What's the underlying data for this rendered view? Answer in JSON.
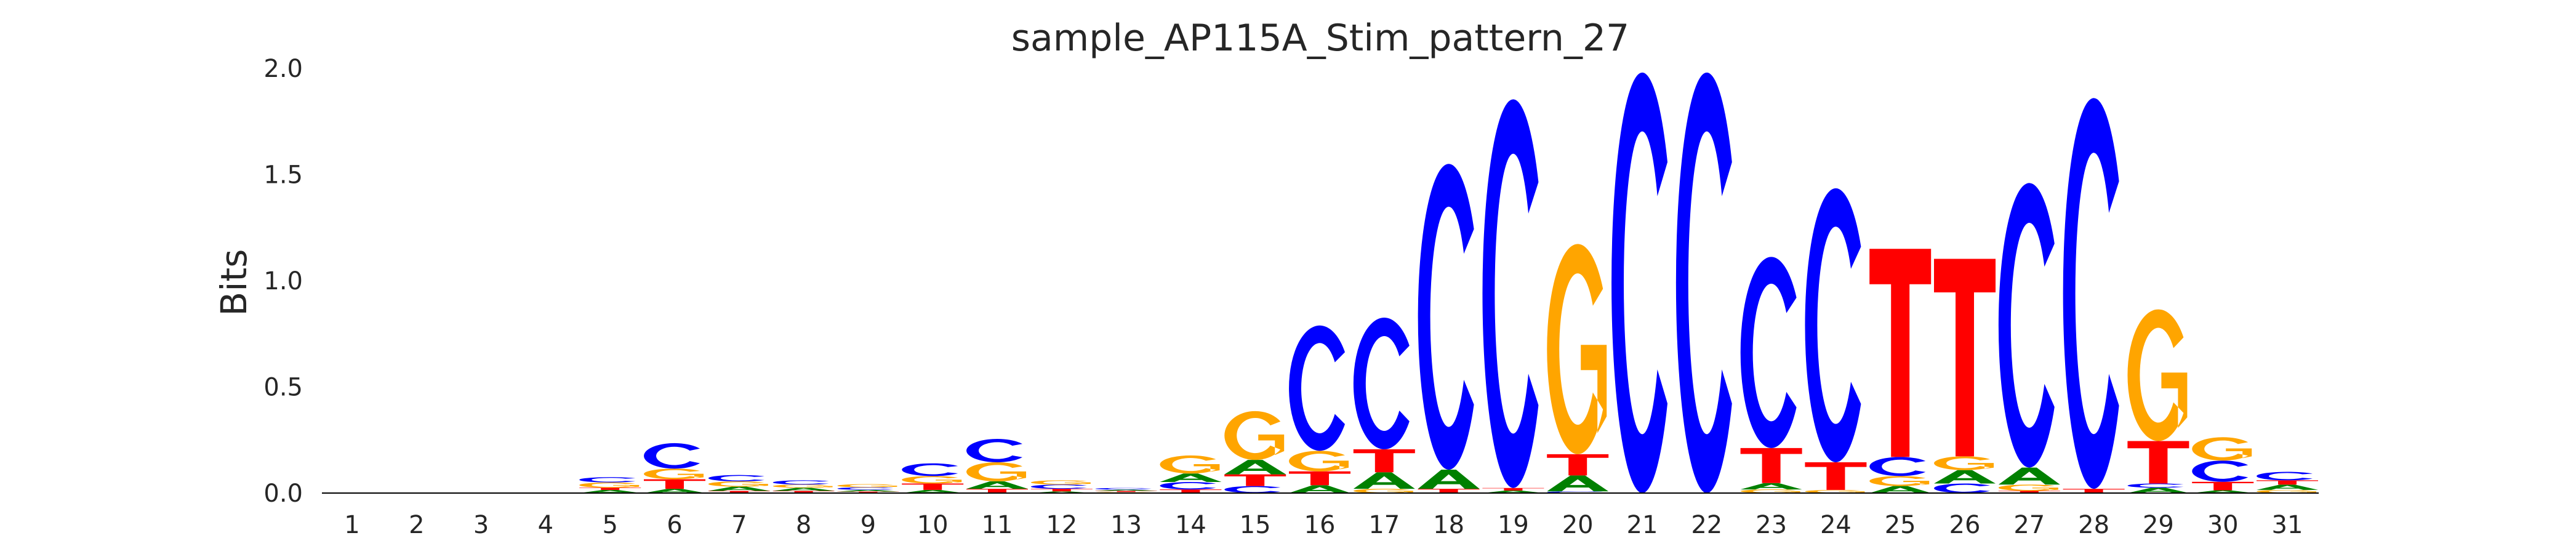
{
  "chart_data": {
    "type": "sequence-logo",
    "title": "sample_AP115A_Stim_pattern_27",
    "xlabel": "",
    "ylabel": "Bits",
    "ylim": [
      0,
      2.0
    ],
    "yticks": [
      "0.0",
      "0.5",
      "1.0",
      "1.5",
      "2.0"
    ],
    "ytick_values": [
      0,
      0.5,
      1.0,
      1.5,
      2.0
    ],
    "colors": {
      "A": "#008000",
      "C": "#0000ff",
      "G": "#ffa500",
      "T": "#ff0000"
    },
    "positions": [
      {
        "pos": "1",
        "stack": []
      },
      {
        "pos": "2",
        "stack": []
      },
      {
        "pos": "3",
        "stack": []
      },
      {
        "pos": "4",
        "stack": []
      },
      {
        "pos": "5",
        "stack": [
          [
            "A",
            0.015
          ],
          [
            "T",
            0.01
          ],
          [
            "G",
            0.025
          ],
          [
            "C",
            0.025
          ]
        ]
      },
      {
        "pos": "6",
        "stack": [
          [
            "A",
            0.02
          ],
          [
            "T",
            0.045
          ],
          [
            "G",
            0.05
          ],
          [
            "C",
            0.12
          ]
        ]
      },
      {
        "pos": "7",
        "stack": [
          [
            "T",
            0.01
          ],
          [
            "A",
            0.02
          ],
          [
            "G",
            0.025
          ],
          [
            "C",
            0.03
          ]
        ]
      },
      {
        "pos": "8",
        "stack": [
          [
            "T",
            0.01
          ],
          [
            "A",
            0.015
          ],
          [
            "G",
            0.015
          ],
          [
            "C",
            0.02
          ]
        ]
      },
      {
        "pos": "9",
        "stack": [
          [
            "T",
            0.007
          ],
          [
            "A",
            0.008
          ],
          [
            "C",
            0.012
          ],
          [
            "G",
            0.015
          ]
        ]
      },
      {
        "pos": "10",
        "stack": [
          [
            "A",
            0.015
          ],
          [
            "T",
            0.03
          ],
          [
            "G",
            0.035
          ],
          [
            "C",
            0.06
          ]
        ]
      },
      {
        "pos": "11",
        "stack": [
          [
            "T",
            0.02
          ],
          [
            "A",
            0.035
          ],
          [
            "G",
            0.09
          ],
          [
            "C",
            0.11
          ]
        ]
      },
      {
        "pos": "12",
        "stack": [
          [
            "A",
            0.008
          ],
          [
            "T",
            0.012
          ],
          [
            "C",
            0.02
          ],
          [
            "G",
            0.02
          ]
        ]
      },
      {
        "pos": "13",
        "stack": [
          [
            "G",
            0.005
          ],
          [
            "T",
            0.005
          ],
          [
            "A",
            0.006
          ],
          [
            "C",
            0.008
          ]
        ]
      },
      {
        "pos": "14",
        "stack": [
          [
            "T",
            0.017
          ],
          [
            "C",
            0.035
          ],
          [
            "A",
            0.04
          ],
          [
            "G",
            0.085
          ]
        ]
      },
      {
        "pos": "15",
        "stack": [
          [
            "C",
            0.033
          ],
          [
            "T",
            0.055
          ],
          [
            "A",
            0.068
          ],
          [
            "G",
            0.23
          ]
        ]
      },
      {
        "pos": "16",
        "stack": [
          [
            "A",
            0.037
          ],
          [
            "T",
            0.065
          ],
          [
            "G",
            0.097
          ],
          [
            "C",
            0.59
          ]
        ]
      },
      {
        "pos": "17",
        "stack": [
          [
            "G",
            0.02
          ],
          [
            "A",
            0.078
          ],
          [
            "T",
            0.108
          ],
          [
            "C",
            0.62
          ]
        ]
      },
      {
        "pos": "18",
        "stack": [
          [
            "T",
            0.02
          ],
          [
            "A",
            0.09
          ],
          [
            "C",
            1.44
          ]
        ]
      },
      {
        "pos": "19",
        "stack": [
          [
            "A",
            0.012
          ],
          [
            "T",
            0.012
          ],
          [
            "C",
            1.83
          ]
        ]
      },
      {
        "pos": "20",
        "stack": [
          [
            "C",
            0.008
          ],
          [
            "A",
            0.075
          ],
          [
            "T",
            0.1
          ],
          [
            "G",
            0.99
          ]
        ]
      },
      {
        "pos": "21",
        "stack": [
          [
            "C",
            1.98
          ]
        ]
      },
      {
        "pos": "22",
        "stack": [
          [
            "C",
            1.98
          ]
        ]
      },
      {
        "pos": "23",
        "stack": [
          [
            "G",
            0.017
          ],
          [
            "A",
            0.03
          ],
          [
            "T",
            0.165
          ],
          [
            "C",
            0.9
          ]
        ]
      },
      {
        "pos": "24",
        "stack": [
          [
            "G",
            0.015
          ],
          [
            "T",
            0.13
          ],
          [
            "C",
            1.29
          ]
        ]
      },
      {
        "pos": "25",
        "stack": [
          [
            "A",
            0.033
          ],
          [
            "G",
            0.047
          ],
          [
            "C",
            0.09
          ],
          [
            "T",
            0.98
          ]
        ]
      },
      {
        "pos": "26",
        "stack": [
          [
            "C",
            0.045
          ],
          [
            "A",
            0.063
          ],
          [
            "G",
            0.065
          ],
          [
            "T",
            0.93
          ]
        ]
      },
      {
        "pos": "27",
        "stack": [
          [
            "T",
            0.01
          ],
          [
            "G",
            0.03
          ],
          [
            "A",
            0.08
          ],
          [
            "C",
            1.34
          ]
        ]
      },
      {
        "pos": "28",
        "stack": [
          [
            "T",
            0.02
          ],
          [
            "C",
            1.84
          ]
        ]
      },
      {
        "pos": "29",
        "stack": [
          [
            "A",
            0.025
          ],
          [
            "C",
            0.02
          ],
          [
            "T",
            0.2
          ],
          [
            "G",
            0.62
          ]
        ]
      },
      {
        "pos": "30",
        "stack": [
          [
            "A",
            0.013
          ],
          [
            "T",
            0.04
          ],
          [
            "C",
            0.1
          ],
          [
            "G",
            0.11
          ]
        ]
      },
      {
        "pos": "31",
        "stack": [
          [
            "G",
            0.015
          ],
          [
            "A",
            0.025
          ],
          [
            "T",
            0.02
          ],
          [
            "C",
            0.04
          ]
        ]
      }
    ]
  }
}
